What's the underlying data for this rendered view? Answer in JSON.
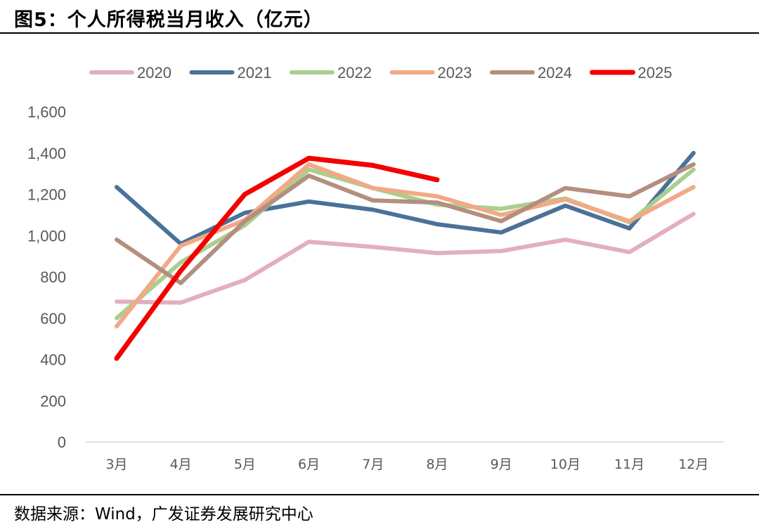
{
  "figure": {
    "title": "图5：个人所得税当月收入（亿元）",
    "source_label": "数据来源：",
    "source_text": "Wind，广发证券发展研究中心"
  },
  "chart_data": {
    "type": "line",
    "title": "个人所得税当月收入（亿元）",
    "xlabel": "",
    "ylabel": "",
    "ylim": [
      0,
      1600
    ],
    "yticks": [
      0,
      200,
      400,
      600,
      800,
      1000,
      1200,
      1400,
      1600
    ],
    "ytick_labels": [
      "0",
      "200",
      "400",
      "600",
      "800",
      "1,000",
      "1,200",
      "1,400",
      "1,600"
    ],
    "categories": [
      "3月",
      "4月",
      "5月",
      "6月",
      "7月",
      "8月",
      "9月",
      "10月",
      "11月",
      "12月"
    ],
    "legend_position": "top",
    "grid": false,
    "series": [
      {
        "name": "2020",
        "color": "#e3aebe",
        "values": [
          680,
          675,
          785,
          970,
          945,
          915,
          925,
          980,
          920,
          1105
        ]
      },
      {
        "name": "2021",
        "color": "#4a7299",
        "values": [
          1235,
          960,
          1110,
          1165,
          1125,
          1055,
          1015,
          1145,
          1035,
          1400
        ]
      },
      {
        "name": "2022",
        "color": "#a9cf8f",
        "values": [
          600,
          870,
          1050,
          1320,
          1230,
          1150,
          1130,
          1180,
          1065,
          1320
        ]
      },
      {
        "name": "2023",
        "color": "#f2a985",
        "values": [
          560,
          950,
          1075,
          1345,
          1230,
          1190,
          1100,
          1175,
          1070,
          1235
        ]
      },
      {
        "name": "2024",
        "color": "#b48e7e",
        "values": [
          980,
          770,
          1070,
          1290,
          1170,
          1160,
          1070,
          1230,
          1190,
          1345
        ]
      },
      {
        "name": "2025",
        "color": "#f30000",
        "values": [
          405,
          830,
          1200,
          1375,
          1340,
          1270,
          null,
          null,
          null,
          null
        ]
      }
    ]
  }
}
